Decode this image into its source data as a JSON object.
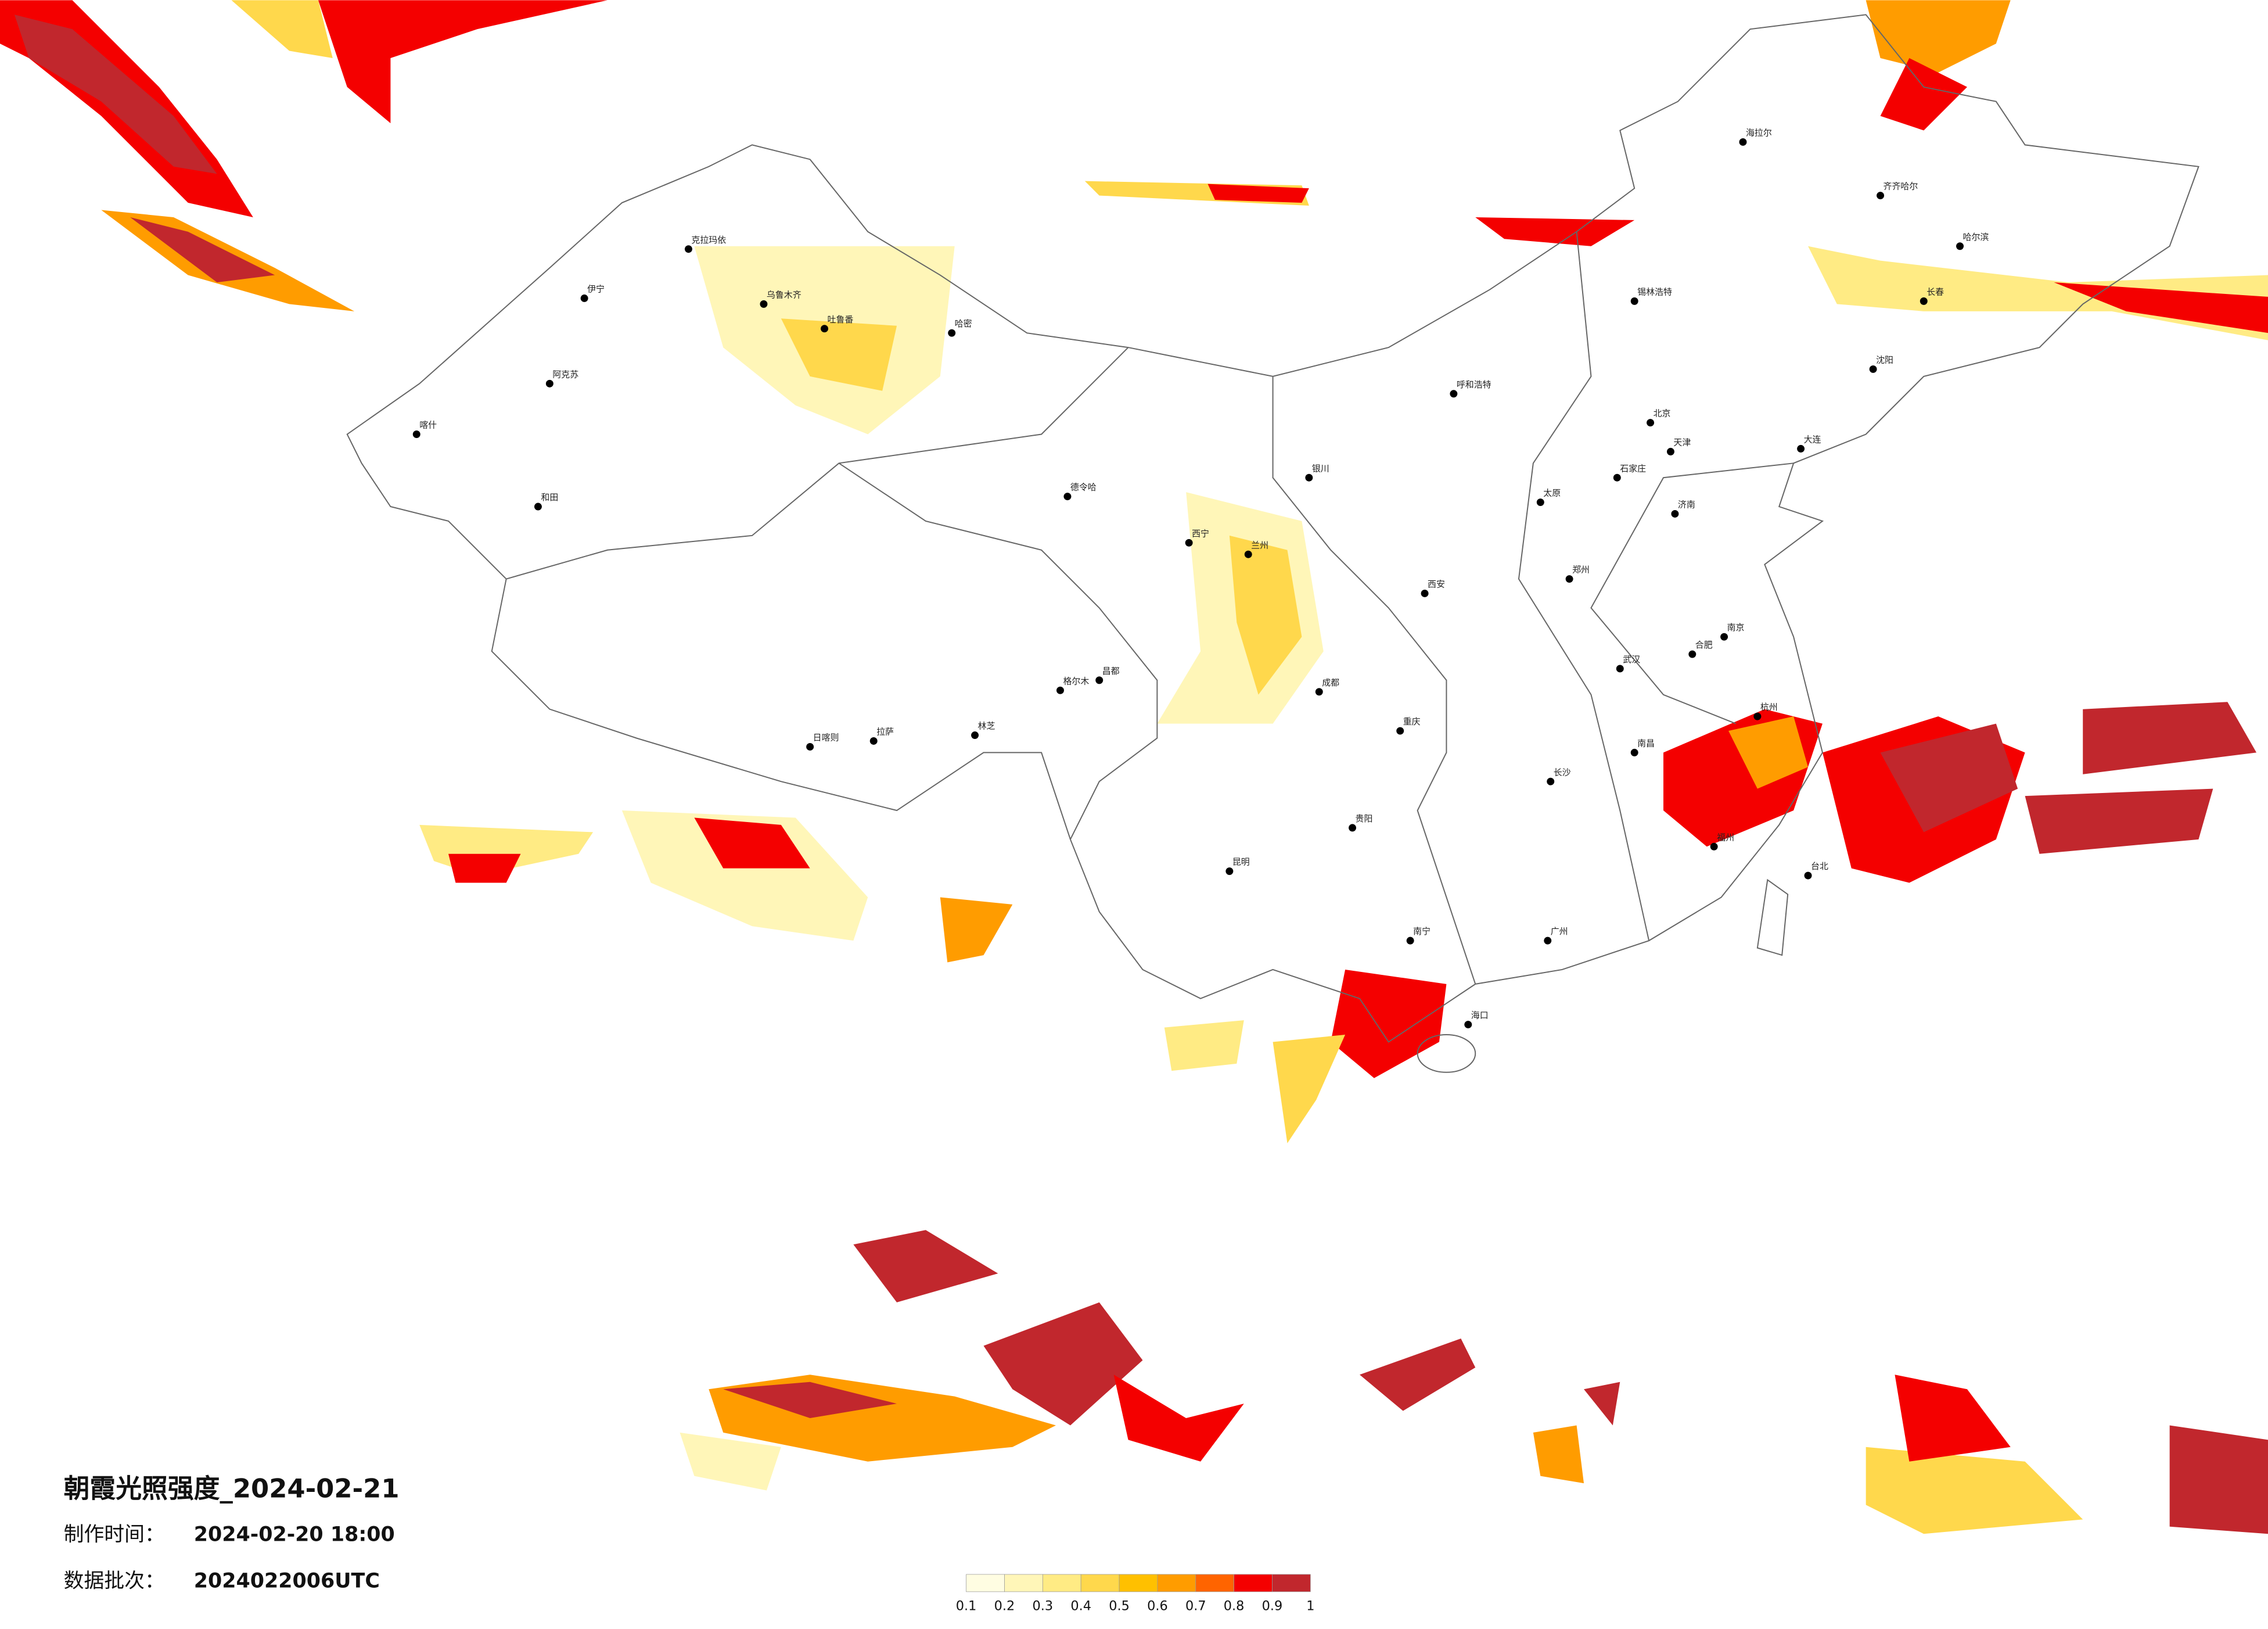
{
  "title": "朝霞光照强度_2024-02-21",
  "production_time": {
    "label": "制作时间：",
    "value": "2024-02-20 18:00"
  },
  "batch": {
    "label": "数据批次：",
    "value": "2024022006UTC"
  },
  "colorbar": {
    "ticks": [
      0.1,
      0.2,
      0.3,
      0.4,
      0.5,
      0.6,
      0.7,
      0.8,
      0.9,
      1
    ],
    "colors": [
      "#fffde2",
      "#fff6b8",
      "#ffeb84",
      "#ffd84c",
      "#ffc000",
      "#ff9c00",
      "#ff6400",
      "#f40000",
      "#c1272d"
    ]
  },
  "cities": [
    "伊宁",
    "克拉玛依",
    "乌鲁木齐",
    "吐鲁番",
    "哈密",
    "阿克苏",
    "喀什",
    "和田",
    "德令哈",
    "格尔木",
    "拉萨",
    "日喀则",
    "林芝",
    "昌都",
    "西宁",
    "兰州",
    "银川",
    "呼和浩特",
    "北京",
    "天津",
    "石家庄",
    "太原",
    "济南",
    "郑州",
    "西安",
    "成都",
    "重庆",
    "武汉",
    "南京",
    "合肥",
    "杭州",
    "南昌",
    "长沙",
    "贵阳",
    "昆明",
    "南宁",
    "广州",
    "福州",
    "台北",
    "海口",
    "哈尔滨",
    "长春",
    "沈阳",
    "大连",
    "齐齐哈尔",
    "海拉尔",
    "锡林浩特"
  ]
}
